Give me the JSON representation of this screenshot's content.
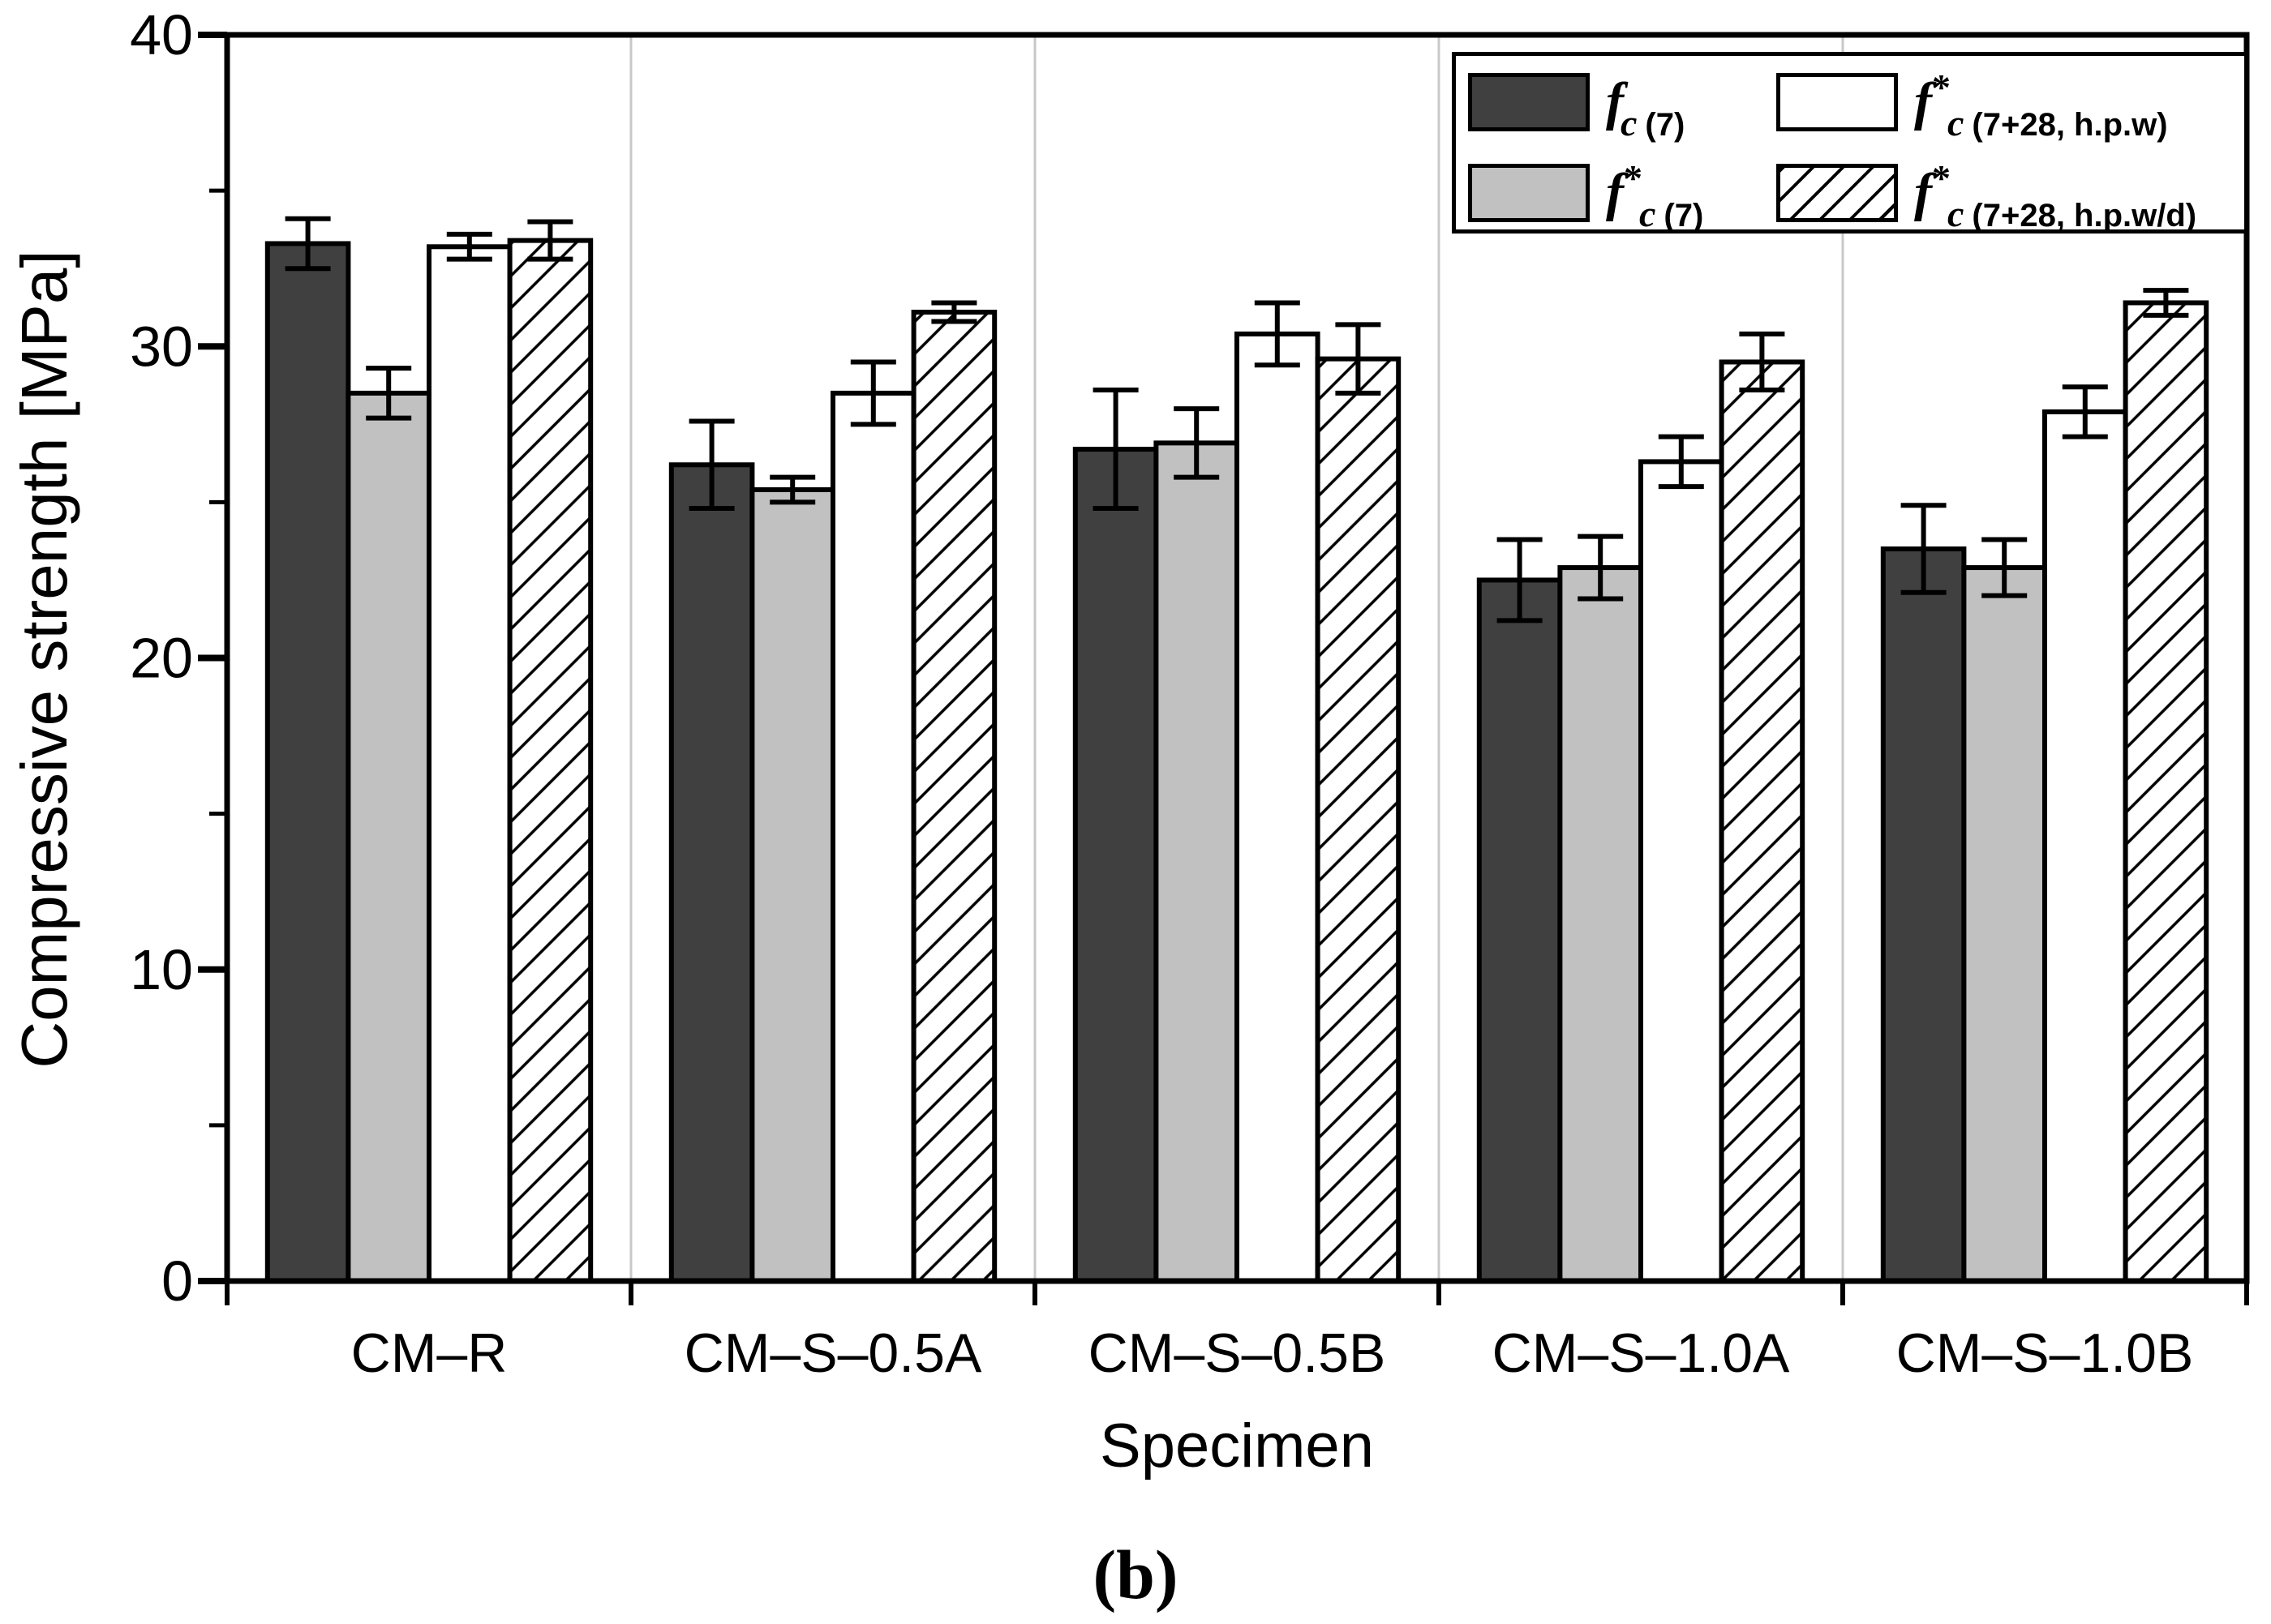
{
  "figure": {
    "caption": "(b)"
  },
  "chart_data": {
    "type": "bar",
    "title": "",
    "xlabel": "Specimen",
    "ylabel": "Compressive strength [MPa]",
    "ylim": [
      0,
      40
    ],
    "yticks": [
      0,
      10,
      20,
      30,
      40
    ],
    "yticks_minor": [
      5,
      15,
      25,
      35
    ],
    "grid": "vertical gray dividers between specimen groups",
    "legend_position": "top-right",
    "categories": [
      "CM–R",
      "CM–S–0.5A",
      "CM–S–0.5B",
      "CM–S–1.0A",
      "CM–S–1.0B"
    ],
    "series": [
      {
        "key": "fc_7",
        "name": "fc(7)",
        "style": "dark",
        "fill": "#404040",
        "values": [
          33.3,
          26.2,
          26.7,
          22.5,
          23.5
        ],
        "errors": [
          0.8,
          1.4,
          1.9,
          1.3,
          1.4
        ]
      },
      {
        "key": "fstarc_7",
        "name": "f*c(7)",
        "style": "light",
        "fill": "#c1c1c1",
        "values": [
          28.5,
          25.4,
          26.9,
          22.9,
          22.9
        ],
        "errors": [
          0.8,
          0.4,
          1.1,
          1.0,
          0.9
        ]
      },
      {
        "key": "fstarc_7_28_hpw",
        "name": "f*c(7+28, h.p.w)",
        "style": "white",
        "fill": "#ffffff",
        "values": [
          33.2,
          28.5,
          30.4,
          26.3,
          27.9
        ],
        "errors": [
          0.4,
          1.0,
          1.0,
          0.8,
          0.8
        ]
      },
      {
        "key": "fstarc_7_28_hpwd",
        "name": "f*c(7+28, h.p.w/d)",
        "style": "hatch",
        "fill": "hatch",
        "values": [
          33.4,
          31.1,
          29.6,
          29.5,
          31.4
        ],
        "errors": [
          0.6,
          0.3,
          1.1,
          0.9,
          0.4
        ]
      }
    ],
    "legend": [
      {
        "f": "f",
        "sup": "",
        "sub_c": "c",
        "sub_rest": "(7)"
      },
      {
        "f": "f",
        "sup": "*",
        "sub_c": "c",
        "sub_rest": "(7)"
      },
      {
        "f": "f",
        "sup": "*",
        "sub_c": "c",
        "sub_rest": "(7+28, h.p.w)"
      },
      {
        "f": "f",
        "sup": "*",
        "sub_c": "c",
        "sub_rest": "(7+28, h.p.w/d)"
      }
    ],
    "colors": {
      "bar_dark": "#404040",
      "bar_light": "#c1c1c1",
      "bar_white": "#ffffff",
      "outline": "#000000",
      "divider": "#c8c8c8",
      "background": "#ffffff"
    }
  }
}
